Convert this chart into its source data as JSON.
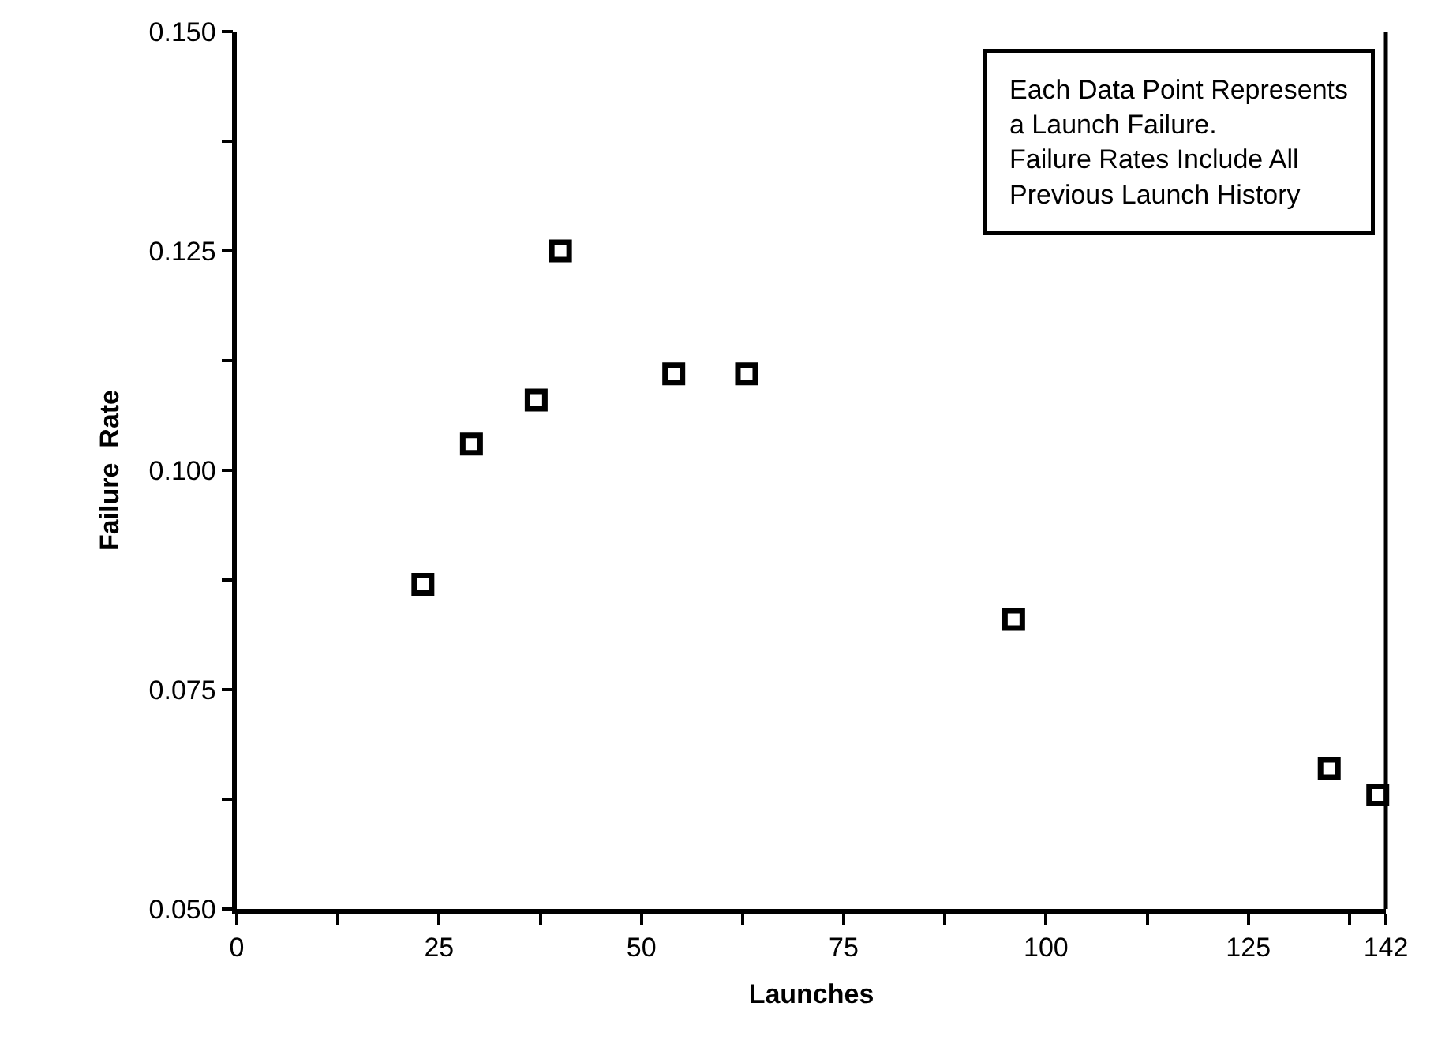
{
  "chart_data": {
    "type": "scatter",
    "xlabel": "Launches",
    "ylabel": "Failure  Rate",
    "annotations": [
      "Each Data Point Represents\na Launch Failure.\nFailure Rates Include All\nPrevious Launch History"
    ],
    "x": [
      23,
      29,
      37,
      40,
      54,
      63,
      96,
      135,
      141
    ],
    "series": [
      {
        "color": "#000000",
        "values": [
          0.087,
          0.103,
          0.108,
          0.125,
          0.111,
          0.111,
          0.083,
          0.066,
          0.063
        ]
      }
    ],
    "xlim": [
      0,
      142
    ],
    "xticks": [
      0,
      {
        "value": 12.5,
        "label": null
      },
      25,
      {
        "value": 37.5,
        "label": null
      },
      50,
      {
        "value": 62.5,
        "label": null
      },
      75,
      {
        "value": 87.5,
        "label": null
      },
      100,
      {
        "value": 112.5,
        "label": null
      },
      125,
      {
        "value": 137.5,
        "label": null
      },
      142
    ],
    "ylim": [
      0.05,
      0.15
    ],
    "yticks": [
      {
        "value": 0.05,
        "label": "0.050"
      },
      {
        "value": 0.0625,
        "label": null
      },
      {
        "value": 0.075,
        "label": "0.075"
      },
      {
        "value": 0.0875,
        "label": null
      },
      {
        "value": 0.1,
        "label": "0.100"
      },
      {
        "value": 0.1125,
        "label": null
      },
      {
        "value": 0.125,
        "label": "0.125"
      },
      {
        "value": 0.1375,
        "label": null
      },
      {
        "value": 0.15,
        "label": "0.150"
      }
    ],
    "marker": "square"
  }
}
